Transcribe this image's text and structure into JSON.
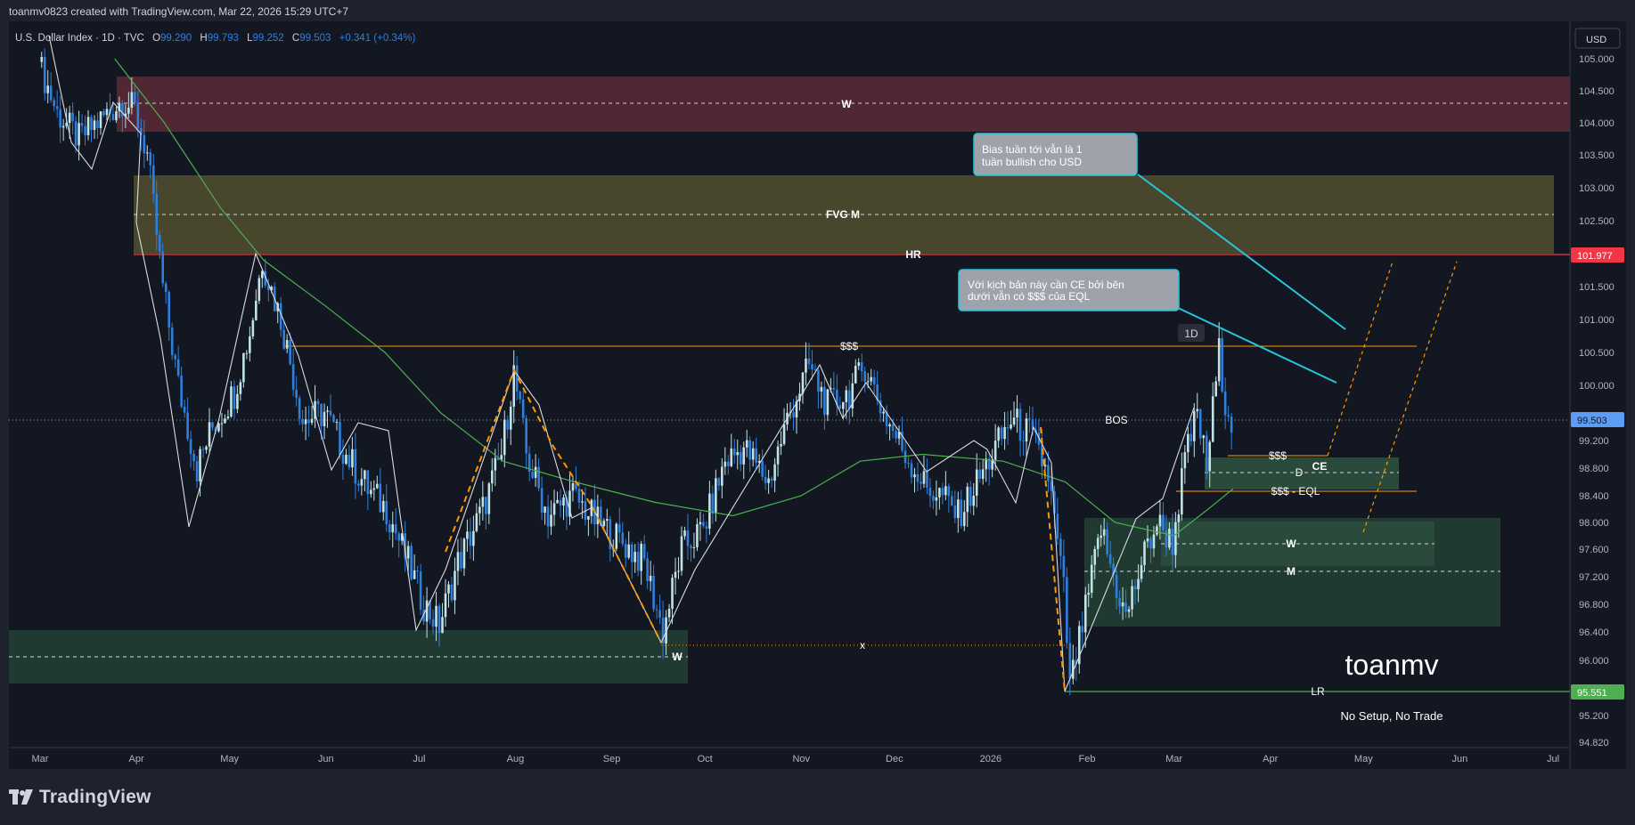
{
  "header": {
    "attribution": "toanmv0823 created with TradingView.com, Mar 22, 2026 15:29 UTC+7"
  },
  "symbol": {
    "name": "U.S. Dollar Index · 1D · TVC",
    "open_label": "O",
    "open": "99.290",
    "high_label": "H",
    "high": "99.793",
    "low_label": "L",
    "low": "99.252",
    "close_label": "C",
    "close": "99.503",
    "change": "+0.341 (+0.34%)"
  },
  "currency_button": "USD",
  "timeframe_badge": "1D",
  "price_axis": {
    "ticks": [
      "105.000",
      "104.500",
      "104.000",
      "103.500",
      "103.000",
      "102.500",
      "102.000",
      "101.500",
      "101.000",
      "100.500",
      "100.000",
      "99.200",
      "98.800",
      "98.400",
      "98.000",
      "97.600",
      "97.200",
      "96.800",
      "96.400",
      "96.000",
      "95.200",
      "94.820"
    ],
    "tag_last": "99.503",
    "tag_high": "101.977",
    "tag_low": "95.551",
    "tag_colors": {
      "last": "#5b9cf6",
      "high": "#f23645",
      "low": "#4caf50"
    }
  },
  "time_axis": [
    "Mar",
    "Apr",
    "May",
    "Jun",
    "Jul",
    "Aug",
    "Sep",
    "Oct",
    "Nov",
    "Dec",
    "2026",
    "Feb",
    "Mar",
    "Apr",
    "May",
    "Jun",
    "Jul"
  ],
  "levels": {
    "w_top": "W",
    "fvg": "FVG M",
    "hr": "HR",
    "sss_top": "$$$",
    "bos": "BOS",
    "sss_ce": "$$$",
    "ce": "CE",
    "d": "D",
    "sss_eql": "$$$ - EQL",
    "w_mid": "W",
    "m_mid": "M",
    "x": "x",
    "w_low": "W",
    "lr": "LR"
  },
  "callouts": {
    "upper": "Bias tuần tới vẫn là 1 tuần bullish cho USD",
    "lower": "Với kịch bản này cần CE bởi bên dưới vẫn có $$$ của EQL"
  },
  "watermark": {
    "name": "toanmv",
    "tagline": "No Setup, No Trade"
  },
  "footer": {
    "brand": "TradingView"
  },
  "colors": {
    "background": "#1e222d",
    "chart_bg": "#131722",
    "up": "#bfe3e6",
    "down": "#2f7fdc",
    "ma": "#4caf50",
    "supply_zone": "#5c2a35",
    "fvg_zone": "#4f4b2e",
    "demand_zone": "#213a31"
  },
  "chart_data": {
    "type": "candlestick",
    "title": "U.S. Dollar Index · 1D · TVC",
    "ylim": [
      94.82,
      105.28
    ],
    "y_axis_side": "right",
    "x_axis": "dates Mar 2025 – Jul 2026",
    "last_price": 99.503,
    "series": [
      {
        "name": "price_path",
        "points": [
          [
            "2025-03-01",
            104.95
          ],
          [
            "2025-03-07",
            104.15
          ],
          [
            "2025-03-14",
            103.75
          ],
          [
            "2025-03-21",
            104.05
          ],
          [
            "2025-03-28",
            104.35
          ],
          [
            "2025-04-01",
            104.2
          ],
          [
            "2025-04-05",
            103.5
          ],
          [
            "2025-04-10",
            101.5
          ],
          [
            "2025-04-15",
            100.0
          ],
          [
            "2025-04-21",
            98.8
          ],
          [
            "2025-04-26",
            99.4
          ],
          [
            "2025-05-03",
            99.9
          ],
          [
            "2025-05-08",
            100.8
          ],
          [
            "2025-05-12",
            101.9
          ],
          [
            "2025-05-18",
            101.0
          ],
          [
            "2025-05-25",
            99.5
          ],
          [
            "2025-06-01",
            99.6
          ],
          [
            "2025-06-08",
            99.0
          ],
          [
            "2025-06-15",
            98.5
          ],
          [
            "2025-06-21",
            98.2
          ],
          [
            "2025-06-28",
            97.4
          ],
          [
            "2025-07-03",
            96.8
          ],
          [
            "2025-07-08",
            96.5
          ],
          [
            "2025-07-14",
            97.4
          ],
          [
            "2025-07-22",
            98.2
          ],
          [
            "2025-07-28",
            99.0
          ],
          [
            "2025-08-01",
            100.2
          ],
          [
            "2025-08-05",
            99.0
          ],
          [
            "2025-08-12",
            98.1
          ],
          [
            "2025-08-20",
            98.4
          ],
          [
            "2025-08-28",
            98.0
          ],
          [
            "2025-09-05",
            97.7
          ],
          [
            "2025-09-12",
            97.4
          ],
          [
            "2025-09-18",
            96.4
          ],
          [
            "2025-09-24",
            97.6
          ],
          [
            "2025-10-01",
            97.9
          ],
          [
            "2025-10-08",
            98.9
          ],
          [
            "2025-10-14",
            99.1
          ],
          [
            "2025-10-22",
            98.6
          ],
          [
            "2025-10-28",
            99.5
          ],
          [
            "2025-11-04",
            100.3
          ],
          [
            "2025-11-10",
            99.7
          ],
          [
            "2025-11-17",
            99.9
          ],
          [
            "2025-11-22",
            100.3
          ],
          [
            "2025-11-28",
            99.6
          ],
          [
            "2025-12-05",
            99.0
          ],
          [
            "2025-12-12",
            98.5
          ],
          [
            "2025-12-17",
            98.4
          ],
          [
            "2025-12-22",
            98.1
          ],
          [
            "2025-12-27",
            98.5
          ],
          [
            "2026-01-02",
            99.0
          ],
          [
            "2026-01-08",
            99.5
          ],
          [
            "2026-01-14",
            99.3
          ],
          [
            "2026-01-20",
            98.7
          ],
          [
            "2026-01-25",
            97.0
          ],
          [
            "2026-01-27",
            95.6
          ],
          [
            "2026-02-01",
            96.7
          ],
          [
            "2026-02-06",
            97.9
          ],
          [
            "2026-02-10",
            97.2
          ],
          [
            "2026-02-14",
            96.6
          ],
          [
            "2026-02-19",
            97.4
          ],
          [
            "2026-02-24",
            98.0
          ],
          [
            "2026-03-01",
            97.7
          ],
          [
            "2026-03-05",
            98.9
          ],
          [
            "2026-03-09",
            99.6
          ],
          [
            "2026-03-12",
            98.8
          ],
          [
            "2026-03-16",
            100.5
          ],
          [
            "2026-03-18",
            99.8
          ],
          [
            "2026-03-20",
            99.503
          ]
        ]
      },
      {
        "name": "moving_average",
        "points": [
          [
            "2025-03-25",
            105.0
          ],
          [
            "2025-04-10",
            104.0
          ],
          [
            "2025-04-28",
            102.7
          ],
          [
            "2025-05-12",
            101.9
          ],
          [
            "2025-06-01",
            101.2
          ],
          [
            "2025-06-20",
            100.5
          ],
          [
            "2025-07-08",
            99.6
          ],
          [
            "2025-07-28",
            98.9
          ],
          [
            "2025-08-20",
            98.6
          ],
          [
            "2025-09-15",
            98.3
          ],
          [
            "2025-10-10",
            98.1
          ],
          [
            "2025-11-01",
            98.4
          ],
          [
            "2025-11-20",
            98.9
          ],
          [
            "2025-12-10",
            99.0
          ],
          [
            "2026-01-05",
            98.9
          ],
          [
            "2026-01-25",
            98.6
          ],
          [
            "2026-02-10",
            98.0
          ],
          [
            "2026-03-01",
            97.8
          ],
          [
            "2026-03-12",
            98.2
          ],
          [
            "2026-03-20",
            98.5
          ]
        ]
      }
    ],
    "levels": [
      {
        "label": "W",
        "value": 104.3
      },
      {
        "label": "FVG M",
        "value": 102.6
      },
      {
        "label": "HR",
        "value": 101.977
      },
      {
        "label": "$$$",
        "value": 100.6
      },
      {
        "label": "BOS",
        "value": 99.5
      },
      {
        "label": "$$$",
        "value": 99.0
      },
      {
        "label": "CE",
        "value": 98.95
      },
      {
        "label": "D",
        "value": 98.75
      },
      {
        "label": "$$$ - EQL",
        "value": 98.45
      },
      {
        "label": "W",
        "value": 97.6
      },
      {
        "label": "M",
        "value": 97.2
      },
      {
        "label": "x",
        "value": 96.2
      },
      {
        "label": "W",
        "value": 96.0
      },
      {
        "label": "LR",
        "value": 95.551
      }
    ]
  }
}
